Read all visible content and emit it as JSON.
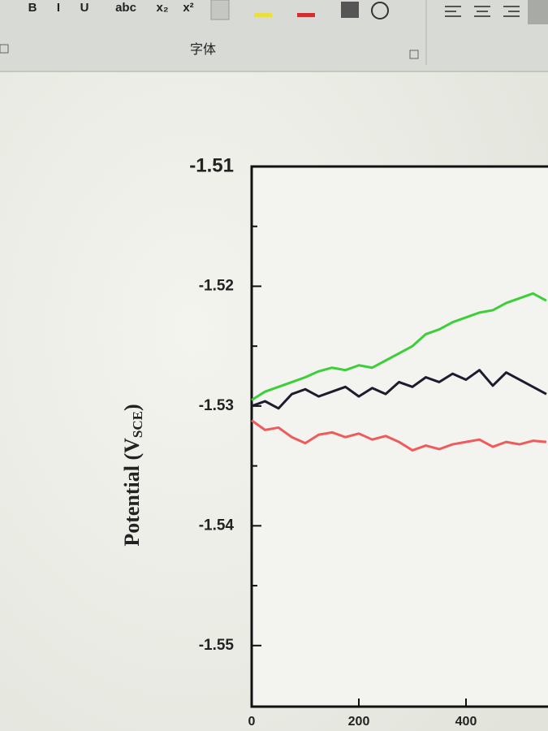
{
  "ribbon": {
    "buttons": [
      "B",
      "I",
      "U",
      "abc",
      "x₂",
      "x²"
    ],
    "group": "字体"
  },
  "chart_data": {
    "type": "line",
    "y_label": {
      "main": "Potential (V",
      "sub": "SCE",
      "close": ")"
    },
    "x": [
      0,
      25,
      50,
      75,
      100,
      125,
      150,
      175,
      200,
      225,
      250,
      275,
      300,
      325,
      350,
      375,
      400,
      425,
      450,
      475,
      500,
      525,
      550
    ],
    "series": [
      {
        "color": "#3ccf3a",
        "values": [
          -1.5295,
          -1.5288,
          -1.5284,
          -1.528,
          -1.5276,
          -1.5271,
          -1.5268,
          -1.527,
          -1.5266,
          -1.5268,
          -1.5262,
          -1.5256,
          -1.525,
          -1.524,
          -1.5236,
          -1.523,
          -1.5226,
          -1.5222,
          -1.522,
          -1.5214,
          -1.521,
          -1.5206,
          -1.5212
        ]
      },
      {
        "color": "#1b1d2e",
        "values": [
          -1.53,
          -1.5296,
          -1.5302,
          -1.529,
          -1.5286,
          -1.5292,
          -1.5288,
          -1.5284,
          -1.5292,
          -1.5285,
          -1.529,
          -1.528,
          -1.5284,
          -1.5276,
          -1.528,
          -1.5273,
          -1.5278,
          -1.527,
          -1.5283,
          -1.5272,
          -1.5278,
          -1.5284,
          -1.529
        ]
      },
      {
        "color": "#ef5a5a",
        "values": [
          -1.5312,
          -1.532,
          -1.5318,
          -1.5326,
          -1.5331,
          -1.5324,
          -1.5322,
          -1.5326,
          -1.5323,
          -1.5328,
          -1.5325,
          -1.533,
          -1.5337,
          -1.5333,
          -1.5336,
          -1.5332,
          -1.533,
          -1.5328,
          -1.5334,
          -1.533,
          -1.5332,
          -1.5329,
          -1.533
        ]
      }
    ],
    "xlim": [
      0,
      550
    ],
    "xticks": [
      0,
      200,
      400
    ],
    "ylim": [
      -1.5551,
      -1.51
    ],
    "yticks": [
      -1.51,
      -1.52,
      -1.53,
      -1.54,
      -1.55
    ],
    "yminor_ticks": [
      -1.515,
      -1.525,
      -1.535,
      -1.545
    ]
  }
}
